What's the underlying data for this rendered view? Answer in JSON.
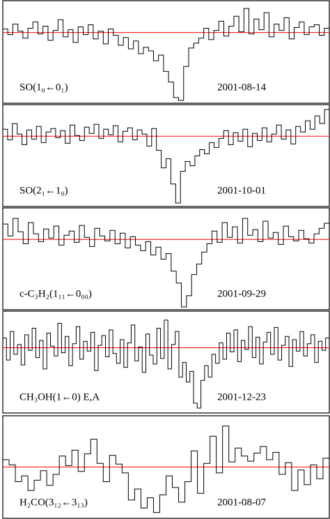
{
  "chart_data": [
    {
      "type": "step",
      "label": "SO(1₀←0₁)",
      "date": "2001-08-14",
      "color": "#000000",
      "baseline": 0,
      "baseline_color": "#ff0000",
      "ylim": [
        -10,
        4.5
      ],
      "values": [
        0.5,
        -0.3,
        1.2,
        0.2,
        -0.8,
        0.6,
        1.5,
        -0.2,
        0.9,
        -1.1,
        0.3,
        1.8,
        -0.6,
        0.4,
        -1.4,
        0.8,
        -0.3,
        1.1,
        -0.9,
        0.2,
        -1.6,
        0.5,
        -0.4,
        -1.8,
        -0.7,
        -2.3,
        -1.2,
        -3.0,
        -2.1,
        -2.6,
        -4.0,
        -3.2,
        -5.5,
        -7.0,
        -9.2,
        -9.6,
        -4.8,
        -2.2,
        -1.5,
        -0.8,
        0.6,
        -1.0,
        0.3,
        1.6,
        -0.5,
        0.9,
        2.3,
        0.1,
        3.4,
        -0.2,
        1.9,
        0.4,
        2.8,
        -0.6,
        1.2,
        0.3,
        2.1,
        -0.9,
        0.7,
        1.5,
        -0.3,
        0.8,
        1.1,
        -0.4,
        0.6
      ]
    },
    {
      "type": "step",
      "label": "SO(2₁←1₀)",
      "date": "2001-10-01",
      "color": "#000000",
      "baseline": 0,
      "baseline_color": "#ff0000",
      "ylim": [
        -10,
        4.5
      ],
      "values": [
        1.0,
        -0.5,
        1.8,
        0.3,
        -1.2,
        0.9,
        -0.4,
        1.4,
        -0.9,
        0.6,
        1.1,
        -0.2,
        0.8,
        -1.0,
        1.6,
        0.1,
        -0.6,
        1.3,
        0.4,
        1.7,
        -0.3,
        1.0,
        0.2,
        1.5,
        -0.8,
        0.7,
        1.2,
        -0.5,
        0.9,
        0.3,
        -1.4,
        1.1,
        -2.0,
        -4.5,
        -3.2,
        -6.8,
        -9.5,
        -5.0,
        -3.6,
        -4.2,
        -2.8,
        -1.9,
        -2.5,
        -0.9,
        -1.6,
        -0.3,
        0.8,
        -1.2,
        0.5,
        -0.7,
        1.0,
        -1.5,
        0.4,
        -0.6,
        1.2,
        -0.8,
        0.3,
        1.6,
        -0.4,
        0.9,
        -1.1,
        1.4,
        0.6,
        2.2,
        1.0,
        2.9,
        1.8,
        3.8
      ]
    },
    {
      "type": "step",
      "label": "c-C₃H₂(1₁₁←0₀₀)",
      "date": "2001-09-29",
      "color": "#000000",
      "baseline": 0,
      "baseline_color": "#ff0000",
      "ylim": [
        -10,
        4.5
      ],
      "values": [
        2.2,
        0.5,
        3.0,
        1.1,
        -0.6,
        2.4,
        0.8,
        -0.3,
        1.5,
        0.2,
        1.9,
        -0.8,
        0.6,
        1.2,
        -0.4,
        2.0,
        0.3,
        -1.0,
        1.6,
        0.5,
        -0.2,
        1.3,
        -0.6,
        0.9,
        -1.2,
        0.4,
        -0.8,
        -1.6,
        -0.3,
        -2.2,
        -1.1,
        -2.8,
        -2.0,
        -4.5,
        -6.2,
        -9.6,
        -8.0,
        -5.0,
        -3.5,
        -1.8,
        -0.6,
        1.2,
        -0.4,
        2.4,
        0.3,
        1.8,
        -0.5,
        3.0,
        0.6,
        1.4,
        -0.3,
        2.6,
        0.2,
        1.0,
        -0.7,
        1.9,
        0.4,
        -0.2,
        1.3,
        0.1,
        -0.5,
        0.8,
        1.6,
        2.3
      ]
    },
    {
      "type": "step",
      "label": "CH₃OH(1←0) E,A",
      "date": "2001-12-23",
      "color": "#000000",
      "baseline": 0,
      "baseline_color": "#ff0000",
      "ylim": [
        -8,
        4.5
      ],
      "values": [
        1.2,
        -1.5,
        2.0,
        -0.8,
        0.4,
        -2.1,
        1.6,
        -0.3,
        2.4,
        -1.2,
        0.9,
        -2.6,
        1.8,
        0.2,
        -1.0,
        3.0,
        -0.6,
        1.4,
        -2.2,
        0.5,
        2.6,
        -1.4,
        0.8,
        -0.4,
        1.9,
        -2.8,
        0.3,
        1.5,
        -1.1,
        2.2,
        -0.7,
        -1.9,
        1.0,
        -2.4,
        0.6,
        2.8,
        -1.6,
        0.1,
        -3.0,
        1.7,
        -0.9,
        -2.0,
        2.4,
        -1.3,
        3.4,
        -2.6,
        0.4,
        2.0,
        -3.6,
        -1.8,
        -4.2,
        -2.9,
        -6.8,
        -7.4,
        -4.0,
        -2.2,
        -3.6,
        -0.8,
        -1.9,
        0.6,
        -1.4,
        1.8,
        -0.5,
        2.2,
        -1.7,
        0.9,
        -0.2,
        2.6,
        -1.2,
        1.3,
        -2.0,
        0.7,
        1.9,
        -0.8,
        2.5,
        -1.5,
        0.3,
        1.4,
        -2.3,
        1.0,
        -0.4,
        2.0,
        -1.0,
        0.5,
        1.6,
        -1.8,
        0.8,
        -0.3,
        1.2
      ]
    },
    {
      "type": "step",
      "label": "H₂CO(3₁₂←3₁₃)",
      "date": "2001-08-07",
      "color": "#000000",
      "baseline": 0,
      "baseline_color": "#ff0000",
      "ylim": [
        -7,
        7
      ],
      "values": [
        1.0,
        0.3,
        -2.0,
        -1.2,
        -3.2,
        -1.8,
        -0.5,
        -2.5,
        -1.0,
        1.5,
        0.2,
        2.3,
        -0.6,
        1.8,
        3.8,
        0.5,
        -2.0,
        1.6,
        0.4,
        -0.8,
        -4.5,
        -3.0,
        -5.6,
        -4.2,
        -6.2,
        -3.8,
        -1.2,
        -2.8,
        -4.8,
        -2.0,
        2.2,
        -3.6,
        0.5,
        4.2,
        -0.8,
        5.6,
        0.7,
        2.6,
        1.5,
        0.8,
        1.9,
        2.8,
        1.0,
        2.0,
        -1.0,
        0.6,
        -3.2,
        -0.4,
        -2.4,
        0.3,
        -1.6,
        1.2
      ]
    }
  ]
}
